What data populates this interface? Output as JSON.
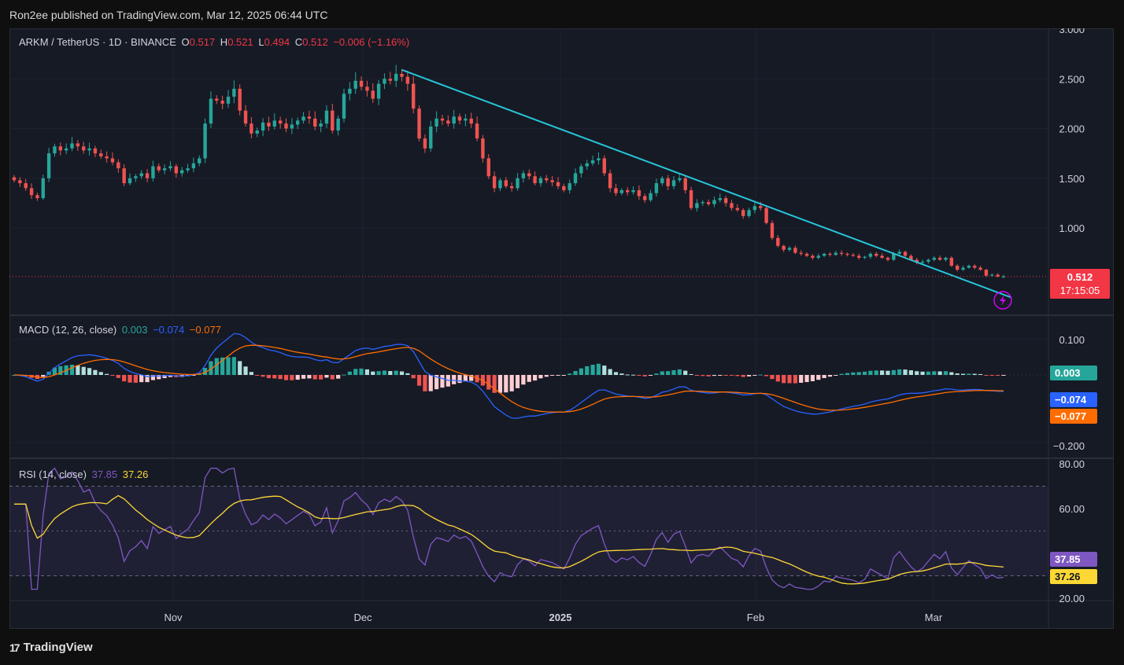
{
  "header": {
    "publisher": "Ron2ee published on TradingView.com, Mar 12, 2025 06:44 UTC"
  },
  "legend": {
    "symbol": "ARKM / TetherUS · 1D · BINANCE",
    "o_label": "O",
    "o": "0.517",
    "h_label": "H",
    "h": "0.521",
    "l_label": "L",
    "l": "0.494",
    "c_label": "C",
    "c": "0.512",
    "change": "−0.006 (−1.16%)"
  },
  "price_badge": {
    "price": "0.512",
    "countdown": "17:15:05"
  },
  "macd": {
    "label": "MACD (12, 26, close)",
    "hist": "0.003",
    "macd": "−0.074",
    "signal": "−0.077"
  },
  "rsi": {
    "label": "RSI (14, close)",
    "rsi": "37.85",
    "ma": "37.26"
  },
  "branding": {
    "logo_text": "TradingView"
  },
  "colors": {
    "up": "#26a69a",
    "down": "#ef5350",
    "trendline": "#26c6da",
    "macd_line": "#2962ff",
    "signal_line": "#ff6d00",
    "rsi_line": "#7e57c2",
    "rsi_ma": "#fdd835"
  },
  "chart_data": [
    {
      "type": "candlestick",
      "title": "ARKM / TetherUS · 1D · BINANCE",
      "y_ticks": [
        "3.000",
        "2.500",
        "2.000",
        "1.500",
        "1.000"
      ],
      "ylim": [
        0.2,
        3.0
      ],
      "x_ticks": [
        "Nov",
        "Dec",
        "2025",
        "Feb",
        "Mar"
      ],
      "closes": [
        1.48,
        1.45,
        1.4,
        1.33,
        1.3,
        1.5,
        1.75,
        1.82,
        1.78,
        1.8,
        1.85,
        1.82,
        1.78,
        1.8,
        1.75,
        1.72,
        1.7,
        1.66,
        1.6,
        1.45,
        1.5,
        1.52,
        1.55,
        1.5,
        1.62,
        1.58,
        1.6,
        1.62,
        1.55,
        1.58,
        1.6,
        1.65,
        1.7,
        2.05,
        2.3,
        2.28,
        2.25,
        2.32,
        2.4,
        2.18,
        2.05,
        1.95,
        1.98,
        2.06,
        2.02,
        2.08,
        2.05,
        2.0,
        2.04,
        2.08,
        2.12,
        2.1,
        2.02,
        2.05,
        2.18,
        1.98,
        2.1,
        2.35,
        2.4,
        2.48,
        2.42,
        2.38,
        2.3,
        2.45,
        2.5,
        2.48,
        2.55,
        2.52,
        2.45,
        2.2,
        1.9,
        1.8,
        2.02,
        2.1,
        2.08,
        2.05,
        2.12,
        2.08,
        2.1,
        2.05,
        1.9,
        1.7,
        1.52,
        1.4,
        1.48,
        1.42,
        1.4,
        1.5,
        1.55,
        1.52,
        1.45,
        1.5,
        1.48,
        1.46,
        1.42,
        1.38,
        1.45,
        1.55,
        1.62,
        1.65,
        1.68,
        1.7,
        1.55,
        1.4,
        1.35,
        1.38,
        1.36,
        1.38,
        1.32,
        1.28,
        1.35,
        1.45,
        1.5,
        1.42,
        1.48,
        1.5,
        1.38,
        1.2,
        1.25,
        1.26,
        1.24,
        1.28,
        1.3,
        1.25,
        1.2,
        1.18,
        1.12,
        1.18,
        1.22,
        1.2,
        1.05,
        0.9,
        0.82,
        0.78,
        0.8,
        0.75,
        0.74,
        0.72,
        0.7,
        0.72,
        0.74,
        0.73,
        0.75,
        0.74,
        0.73,
        0.72,
        0.7,
        0.71,
        0.74,
        0.72,
        0.7,
        0.68,
        0.74,
        0.76,
        0.72,
        0.68,
        0.65,
        0.66,
        0.68,
        0.7,
        0.68,
        0.7,
        0.62,
        0.58,
        0.6,
        0.62,
        0.6,
        0.58,
        0.52,
        0.53,
        0.51,
        0.512
      ],
      "trendline": [
        {
          "date": "Dec 6",
          "value": 2.59
        },
        {
          "date": "Mar 11",
          "value": 0.3
        }
      ]
    },
    {
      "type": "bar",
      "title": "MACD (12, 26, close)",
      "series": [
        "MACD histogram",
        "MACD",
        "Signal"
      ],
      "y_ticks": [
        "0.100",
        "−0.200"
      ],
      "last_values": {
        "histogram": 0.003,
        "macd": -0.074,
        "signal": -0.077
      }
    },
    {
      "type": "line",
      "title": "RSI (14, close)",
      "y_ticks": [
        "80.00",
        "60.00",
        "20.00"
      ],
      "ylim": [
        20,
        80
      ],
      "bands": [
        70,
        50,
        30
      ],
      "last_values": {
        "rsi": 37.85,
        "ma": 37.26
      }
    }
  ]
}
